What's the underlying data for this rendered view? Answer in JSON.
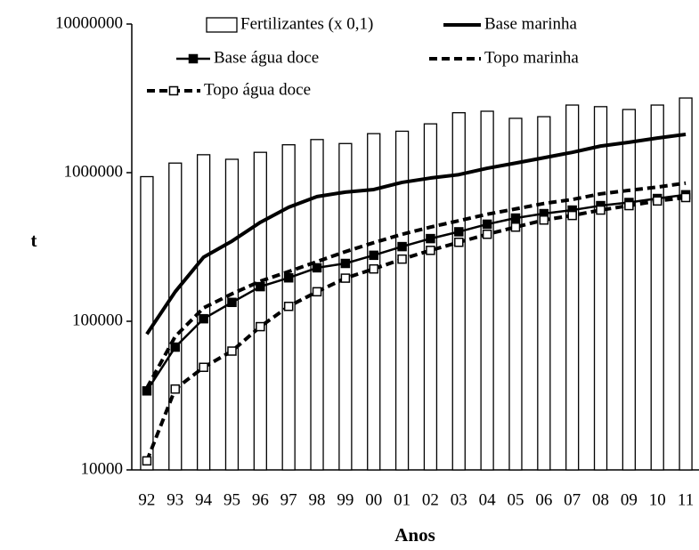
{
  "chart_data": {
    "type": "combo",
    "y_label": "t",
    "x_label": "Anos",
    "log_y": true,
    "ylim": [
      10000,
      10000000
    ],
    "yticks": [
      10000,
      100000,
      1000000,
      10000000
    ],
    "categories": [
      "92",
      "93",
      "94",
      "95",
      "96",
      "97",
      "98",
      "99",
      "00",
      "01",
      "02",
      "03",
      "04",
      "05",
      "06",
      "07",
      "08",
      "09",
      "10",
      "11"
    ],
    "series": [
      {
        "name": "Fertilizantes (x 0,1)",
        "type": "bar",
        "color": "#000000",
        "values": [
          940000,
          1160000,
          1320000,
          1230000,
          1370000,
          1540000,
          1670000,
          1570000,
          1830000,
          1900000,
          2130000,
          2530000,
          2590000,
          2320000,
          2380000,
          2850000,
          2780000,
          2660000,
          2850000,
          3180000
        ]
      },
      {
        "name": "Base marinha",
        "type": "line",
        "color": "#000000",
        "width": 4,
        "dash": false,
        "marker": "none",
        "values": [
          82000,
          158000,
          270000,
          346000,
          463000,
          585000,
          690000,
          740000,
          770000,
          860000,
          920000,
          970000,
          1070000,
          1160000,
          1260000,
          1370000,
          1510000,
          1600000,
          1710000,
          1810000
        ]
      },
      {
        "name": "Base água doce",
        "type": "line",
        "color": "#000000",
        "width": 2.5,
        "dash": false,
        "marker": "filled",
        "values": [
          34000,
          67000,
          104000,
          134000,
          171000,
          196000,
          229000,
          245000,
          278000,
          318000,
          360000,
          400000,
          450000,
          495000,
          530000,
          560000,
          600000,
          630000,
          670000,
          710000
        ]
      },
      {
        "name": "Topo marinha",
        "type": "line",
        "color": "#000000",
        "width": 4,
        "dash": true,
        "marker": "none",
        "values": [
          35500,
          79000,
          123000,
          153000,
          186000,
          216000,
          252000,
          294000,
          338000,
          385000,
          430000,
          475000,
          525000,
          570000,
          620000,
          660000,
          720000,
          760000,
          800000,
          850000
        ]
      },
      {
        "name": "Topo água doce",
        "type": "line",
        "color": "#000000",
        "width": 4,
        "dash": true,
        "marker": "open",
        "values": [
          11500,
          35000,
          49000,
          63000,
          92000,
          126000,
          158000,
          195000,
          225000,
          262000,
          300000,
          340000,
          385000,
          430000,
          480000,
          515000,
          560000,
          600000,
          645000,
          680000
        ]
      }
    ]
  }
}
